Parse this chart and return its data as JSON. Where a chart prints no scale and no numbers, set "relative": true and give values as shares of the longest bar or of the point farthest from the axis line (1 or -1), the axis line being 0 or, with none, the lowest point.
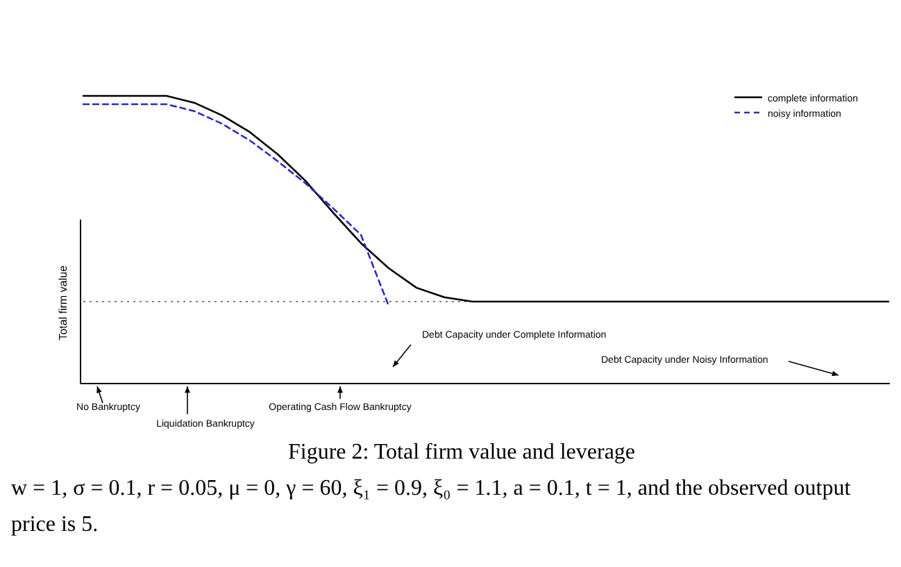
{
  "chart_data": {
    "type": "line",
    "title": "Figure 2: Total firm value and leverage",
    "ylabel": "Total firm value",
    "relative": true,
    "categories": [
      null,
      null,
      null,
      null,
      null,
      null,
      null,
      null,
      null,
      null,
      null,
      null,
      null,
      null,
      null,
      null,
      null,
      null,
      null,
      null,
      null,
      null,
      null,
      null,
      null,
      null,
      null,
      null,
      null,
      null
    ],
    "series": [
      {
        "name": "complete information",
        "color": "#000000",
        "line_style": "solid",
        "values": [
          1,
          1,
          1,
          1,
          0.976,
          0.932,
          0.874,
          0.797,
          0.705,
          0.594,
          0.488,
          0.401,
          0.333,
          0.3,
          0.285,
          0.285,
          0.285,
          0.285,
          0.285,
          0.285,
          0.285,
          0.285,
          0.285,
          0.285,
          0.285,
          0.285,
          0.285,
          0.285,
          0.285,
          0.285
        ]
      },
      {
        "name": "noisy information",
        "color": "#2b2bc8",
        "line_style": "dashed",
        "values": [
          0.971,
          0.971,
          0.971,
          0.971,
          0.947,
          0.903,
          0.845,
          0.773,
          0.696,
          0.609,
          0.517,
          0.27,
          null,
          null,
          null,
          null,
          null,
          null,
          null,
          null,
          null,
          null,
          null,
          null,
          null,
          null,
          null,
          null,
          null,
          null
        ]
      }
    ],
    "ref_lines": [
      {
        "axis": "y",
        "value": 0.285,
        "color": "#555555",
        "line_style": "dotted"
      }
    ],
    "legend": "top right",
    "grid": false,
    "annotations": [
      "No Bankruptcy",
      "Liquidation Bankruptcy",
      "Operating Cash Flow Bankruptcy",
      "Debt Capacity under Complete Information",
      "Debt Capacity under Noisy Information",
      "w = 1,  σ = 0.1,  r = 0.05,  μ = 0,  γ = 60,  ξ₁ = 0.9,  ξ₀ = 1.1,  a = 0.1,  t = 1,  and the observed output price is 5."
    ]
  }
}
